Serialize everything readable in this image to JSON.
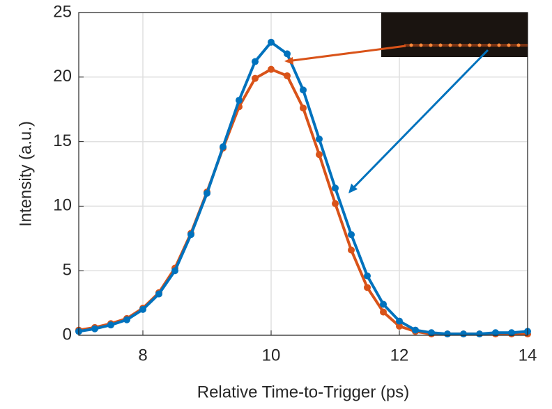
{
  "chart_data": {
    "type": "line",
    "x_label": "Relative Time-to-Trigger (ps)",
    "y_label": "Intensity (a.u.)",
    "x": [
      7,
      7.25,
      7.5,
      7.75,
      8,
      8.25,
      8.5,
      8.75,
      9,
      9.25,
      9.5,
      9.75,
      10,
      10.25,
      10.5,
      10.75,
      11,
      11.25,
      11.5,
      11.75,
      12,
      12.25,
      12.5,
      12.75,
      13,
      13.25,
      13.5,
      13.75,
      14
    ],
    "series": [
      {
        "color": "#d95319",
        "values": [
          0.4,
          0.6,
          0.9,
          1.3,
          2.1,
          3.3,
          5.2,
          7.9,
          11.1,
          14.5,
          17.7,
          19.9,
          20.6,
          20.1,
          17.6,
          14,
          10.2,
          6.6,
          3.7,
          1.8,
          0.7,
          0.3,
          0.1,
          0.1,
          0.1,
          0.1,
          0.1,
          0.1,
          0.1
        ]
      },
      {
        "color": "#0072bd",
        "values": [
          0.3,
          0.5,
          0.8,
          1.2,
          2,
          3.2,
          5,
          7.8,
          11,
          14.6,
          18.2,
          21.2,
          22.7,
          21.8,
          19,
          15.2,
          11.4,
          7.8,
          4.6,
          2.4,
          1.1,
          0.4,
          0.2,
          0.1,
          0.1,
          0.1,
          0.2,
          0.2,
          0.3
        ]
      }
    ],
    "xlim": [
      7,
      14
    ],
    "xticks": [
      8,
      10,
      12,
      14
    ],
    "ylim": [
      0,
      25
    ],
    "yticks": [
      0,
      5,
      10,
      15,
      20,
      25
    ],
    "grid": true
  }
}
